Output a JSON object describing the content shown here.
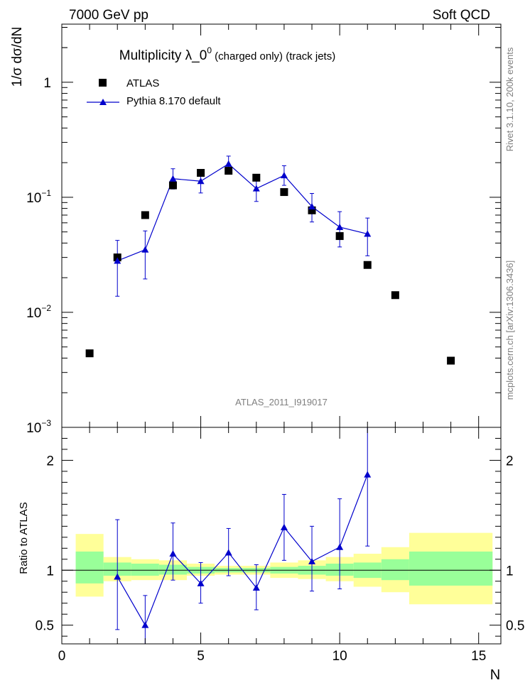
{
  "header": {
    "left": "7000 GeV pp",
    "right": "Soft QCD",
    "title_main": "Multiplicity  λ_0",
    "title_sup": "0",
    "title_rest": " (charged only) (track jets)",
    "watermark": "ATLAS_2011_I919017"
  },
  "side_labels": {
    "rivet": "Rivet 3.1.10,  200k events",
    "mcplots": "mcplots.cern.ch [arXiv:1306.3436]"
  },
  "legend": {
    "data_label": "ATLAS",
    "mc_label": "Pythia 8.170 default"
  },
  "colors": {
    "data": "#000000",
    "mc": "#0000cc",
    "band_inner": "#99ff99",
    "band_outer": "#ffff99"
  },
  "chart_data": [
    {
      "type": "scatter",
      "panel": "main",
      "ylabel": "1/σ dσ/dN",
      "y_scale": "log",
      "ylim": [
        0.001,
        3.2
      ],
      "y_ticks": [
        {
          "value": 1,
          "label": "1",
          "sup": ""
        },
        {
          "value": 0.1,
          "label": "10",
          "sup": "−1"
        },
        {
          "value": 0.01,
          "label": "10",
          "sup": "−2"
        },
        {
          "value": 0.001,
          "label": "10",
          "sup": "−3"
        }
      ],
      "xlim": [
        0,
        15.8
      ],
      "series": [
        {
          "name": "ATLAS",
          "marker": "square",
          "x": [
            1,
            2,
            3,
            4,
            5,
            6,
            7,
            8,
            9,
            10,
            11,
            12,
            14
          ],
          "y": [
            0.0044,
            0.03,
            0.07,
            0.127,
            0.163,
            0.17,
            0.148,
            0.111,
            0.077,
            0.046,
            0.0258,
            0.0141,
            0.0038
          ]
        },
        {
          "name": "Pythia 8.170 default",
          "marker": "triangle",
          "x": [
            2,
            3,
            4,
            5,
            6,
            7,
            8,
            9,
            10,
            11
          ],
          "y": [
            0.028,
            0.035,
            0.145,
            0.138,
            0.195,
            0.119,
            0.155,
            0.083,
            0.055,
            0.048
          ],
          "err_low": [
            0.0142,
            0.0155,
            0.027,
            0.029,
            0.029,
            0.027,
            0.028,
            0.022,
            0.018,
            0.017
          ],
          "err_high": [
            0.0142,
            0.016,
            0.032,
            0.033,
            0.033,
            0.031,
            0.033,
            0.025,
            0.02,
            0.018
          ]
        }
      ]
    },
    {
      "type": "line",
      "panel": "ratio",
      "ylabel": "Ratio to ATLAS",
      "xlabel": "N",
      "ylim": [
        0.33,
        2.3
      ],
      "y_ticks": [
        0.5,
        1,
        2
      ],
      "xlim": [
        0,
        15.8
      ],
      "x_ticks": [
        0,
        5,
        10,
        15
      ],
      "reference": 1,
      "bands": [
        {
          "x_low": 0.5,
          "x_high": 1.5,
          "inner": [
            0.88,
            1.17
          ],
          "outer": [
            0.76,
            1.33
          ]
        },
        {
          "x_low": 1.5,
          "x_high": 2.5,
          "inner": [
            0.95,
            1.07
          ],
          "outer": [
            0.9,
            1.12
          ]
        },
        {
          "x_low": 2.5,
          "x_high": 3.5,
          "inner": [
            0.95,
            1.06
          ],
          "outer": [
            0.91,
            1.1
          ]
        },
        {
          "x_low": 3.5,
          "x_high": 4.5,
          "inner": [
            0.96,
            1.05
          ],
          "outer": [
            0.91,
            1.09
          ]
        },
        {
          "x_low": 4.5,
          "x_high": 5.5,
          "inner": [
            0.97,
            1.03
          ],
          "outer": [
            0.95,
            1.06
          ]
        },
        {
          "x_low": 5.5,
          "x_high": 6.5,
          "inner": [
            0.98,
            1.02
          ],
          "outer": [
            0.96,
            1.04
          ]
        },
        {
          "x_low": 6.5,
          "x_high": 7.5,
          "inner": [
            0.98,
            1.02
          ],
          "outer": [
            0.96,
            1.04
          ]
        },
        {
          "x_low": 7.5,
          "x_high": 8.5,
          "inner": [
            0.97,
            1.03
          ],
          "outer": [
            0.93,
            1.07
          ]
        },
        {
          "x_low": 8.5,
          "x_high": 9.5,
          "inner": [
            0.96,
            1.04
          ],
          "outer": [
            0.92,
            1.09
          ]
        },
        {
          "x_low": 9.5,
          "x_high": 10.5,
          "inner": [
            0.95,
            1.06
          ],
          "outer": [
            0.9,
            1.12
          ]
        },
        {
          "x_low": 10.5,
          "x_high": 11.5,
          "inner": [
            0.93,
            1.07
          ],
          "outer": [
            0.85,
            1.15
          ]
        },
        {
          "x_low": 11.5,
          "x_high": 12.5,
          "inner": [
            0.91,
            1.1
          ],
          "outer": [
            0.8,
            1.21
          ]
        },
        {
          "x_low": 12.5,
          "x_high": 15.5,
          "inner": [
            0.86,
            1.17
          ],
          "outer": [
            0.69,
            1.34
          ]
        }
      ],
      "series": [
        {
          "name": "Pythia 8.170 default",
          "x": [
            2,
            3,
            4,
            5,
            6,
            7,
            8,
            9,
            10,
            11
          ],
          "y": [
            0.94,
            0.5,
            1.15,
            0.88,
            1.16,
            0.84,
            1.39,
            1.08,
            1.21,
            1.87
          ],
          "err_low": [
            0.48,
            0.22,
            0.24,
            0.18,
            0.21,
            0.2,
            0.3,
            0.27,
            0.38,
            0.65
          ],
          "err_high": [
            0.52,
            0.27,
            0.28,
            0.19,
            0.22,
            0.21,
            0.3,
            0.32,
            0.44,
            0.68
          ]
        }
      ]
    }
  ]
}
